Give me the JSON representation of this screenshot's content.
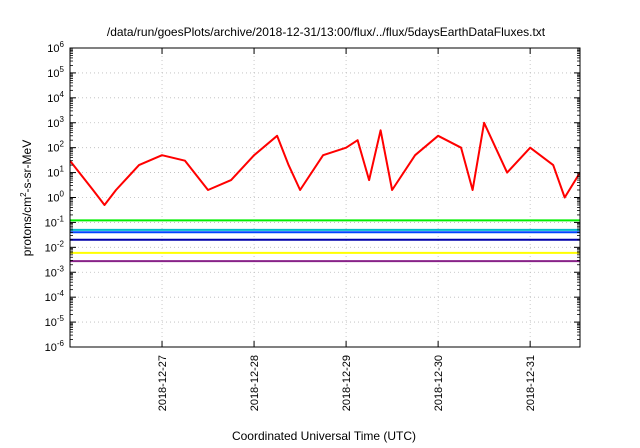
{
  "chart_data": {
    "type": "line",
    "title": "/data/run/goesPlots/archive/2018-12-31/13:00/flux/../flux/5daysEarthDataFluxes.txt",
    "xlabel": "Coordinated Universal Time (UTC)",
    "ylabel": {
      "base": "protons/cm",
      "exp": "2",
      "rest": "-s-sr-MeV"
    },
    "y_scale": "log",
    "ylim": [
      1e-06,
      1000000.0
    ],
    "xlim": [
      "2018-12-26T00:00",
      "2018-12-31T13:00"
    ],
    "grid": true,
    "legend": "none",
    "x_ticks": [
      "2018-12-27",
      "2018-12-28",
      "2018-12-29",
      "2018-12-30",
      "2018-12-31"
    ],
    "y_ticks": [
      {
        "base": "10",
        "exp": "-6"
      },
      {
        "base": "10",
        "exp": "-5"
      },
      {
        "base": "10",
        "exp": "-4"
      },
      {
        "base": "10",
        "exp": "-3"
      },
      {
        "base": "10",
        "exp": "-2"
      },
      {
        "base": "10",
        "exp": "-1"
      },
      {
        "base": "10",
        "exp": "0"
      },
      {
        "base": "10",
        "exp": "1"
      },
      {
        "base": "10",
        "exp": "2"
      },
      {
        "base": "10",
        "exp": "3"
      },
      {
        "base": "10",
        "exp": "4"
      },
      {
        "base": "10",
        "exp": "5"
      },
      {
        "base": "10",
        "exp": "6"
      }
    ],
    "series": [
      {
        "color": "#ff0000",
        "x": [
          "2018-12-26T00:00",
          "2018-12-26T06:00",
          "2018-12-26T09:00",
          "2018-12-26T12:00",
          "2018-12-26T18:00",
          "2018-12-27T00:00",
          "2018-12-27T06:00",
          "2018-12-27T12:00",
          "2018-12-27T18:00",
          "2018-12-28T00:00",
          "2018-12-28T06:00",
          "2018-12-28T09:00",
          "2018-12-28T12:00",
          "2018-12-28T18:00",
          "2018-12-29T00:00",
          "2018-12-29T03:00",
          "2018-12-29T06:00",
          "2018-12-29T09:00",
          "2018-12-29T12:00",
          "2018-12-29T18:00",
          "2018-12-30T00:00",
          "2018-12-30T06:00",
          "2018-12-30T09:00",
          "2018-12-30T12:00",
          "2018-12-30T18:00",
          "2018-12-31T00:00",
          "2018-12-31T06:00",
          "2018-12-31T09:00",
          "2018-12-31T13:00"
        ],
        "y": [
          30,
          2,
          0.5,
          2,
          20,
          50,
          30,
          2,
          5,
          50,
          300,
          20,
          2,
          50,
          100,
          200,
          5,
          500,
          2,
          50,
          300,
          100,
          2,
          1000,
          10,
          100,
          20,
          1,
          10
        ]
      },
      {
        "color": "#00ee00",
        "x": [
          "2018-12-26T00:00",
          "2018-12-27T00:00",
          "2018-12-28T00:00",
          "2018-12-29T00:00",
          "2018-12-30T00:00",
          "2018-12-31T00:00",
          "2018-12-31T13:00"
        ],
        "y": [
          0.12,
          0.12,
          0.12,
          0.12,
          0.12,
          0.12,
          0.12
        ]
      },
      {
        "color": "#00bbcc",
        "x": [
          "2018-12-26T00:00",
          "2018-12-27T00:00",
          "2018-12-28T00:00",
          "2018-12-29T00:00",
          "2018-12-30T00:00",
          "2018-12-31T00:00",
          "2018-12-31T13:00"
        ],
        "y": [
          0.05,
          0.05,
          0.05,
          0.05,
          0.05,
          0.05,
          0.05
        ]
      },
      {
        "color": "#0044ff",
        "x": [
          "2018-12-26T00:00",
          "2018-12-27T00:00",
          "2018-12-28T00:00",
          "2018-12-29T00:00",
          "2018-12-30T00:00",
          "2018-12-31T00:00",
          "2018-12-31T13:00"
        ],
        "y": [
          0.04,
          0.04,
          0.04,
          0.04,
          0.04,
          0.04,
          0.04
        ]
      },
      {
        "color": "#0000aa",
        "x": [
          "2018-12-26T00:00",
          "2018-12-27T00:00",
          "2018-12-28T00:00",
          "2018-12-29T00:00",
          "2018-12-30T00:00",
          "2018-12-31T00:00",
          "2018-12-31T13:00"
        ],
        "y": [
          0.02,
          0.02,
          0.02,
          0.02,
          0.02,
          0.02,
          0.02
        ]
      },
      {
        "color": "#ffff00",
        "x": [
          "2018-12-26T00:00",
          "2018-12-27T00:00",
          "2018-12-28T00:00",
          "2018-12-29T00:00",
          "2018-12-30T00:00",
          "2018-12-31T00:00",
          "2018-12-31T13:00"
        ],
        "y": [
          0.006,
          0.006,
          0.006,
          0.006,
          0.006,
          0.006,
          0.006
        ]
      },
      {
        "color": "#882288",
        "x": [
          "2018-12-26T00:00",
          "2018-12-27T00:00",
          "2018-12-28T00:00",
          "2018-12-29T00:00",
          "2018-12-30T00:00",
          "2018-12-31T00:00",
          "2018-12-31T13:00"
        ],
        "y": [
          0.0028,
          0.0028,
          0.0028,
          0.0028,
          0.0028,
          0.0028,
          0.0028
        ]
      }
    ]
  }
}
